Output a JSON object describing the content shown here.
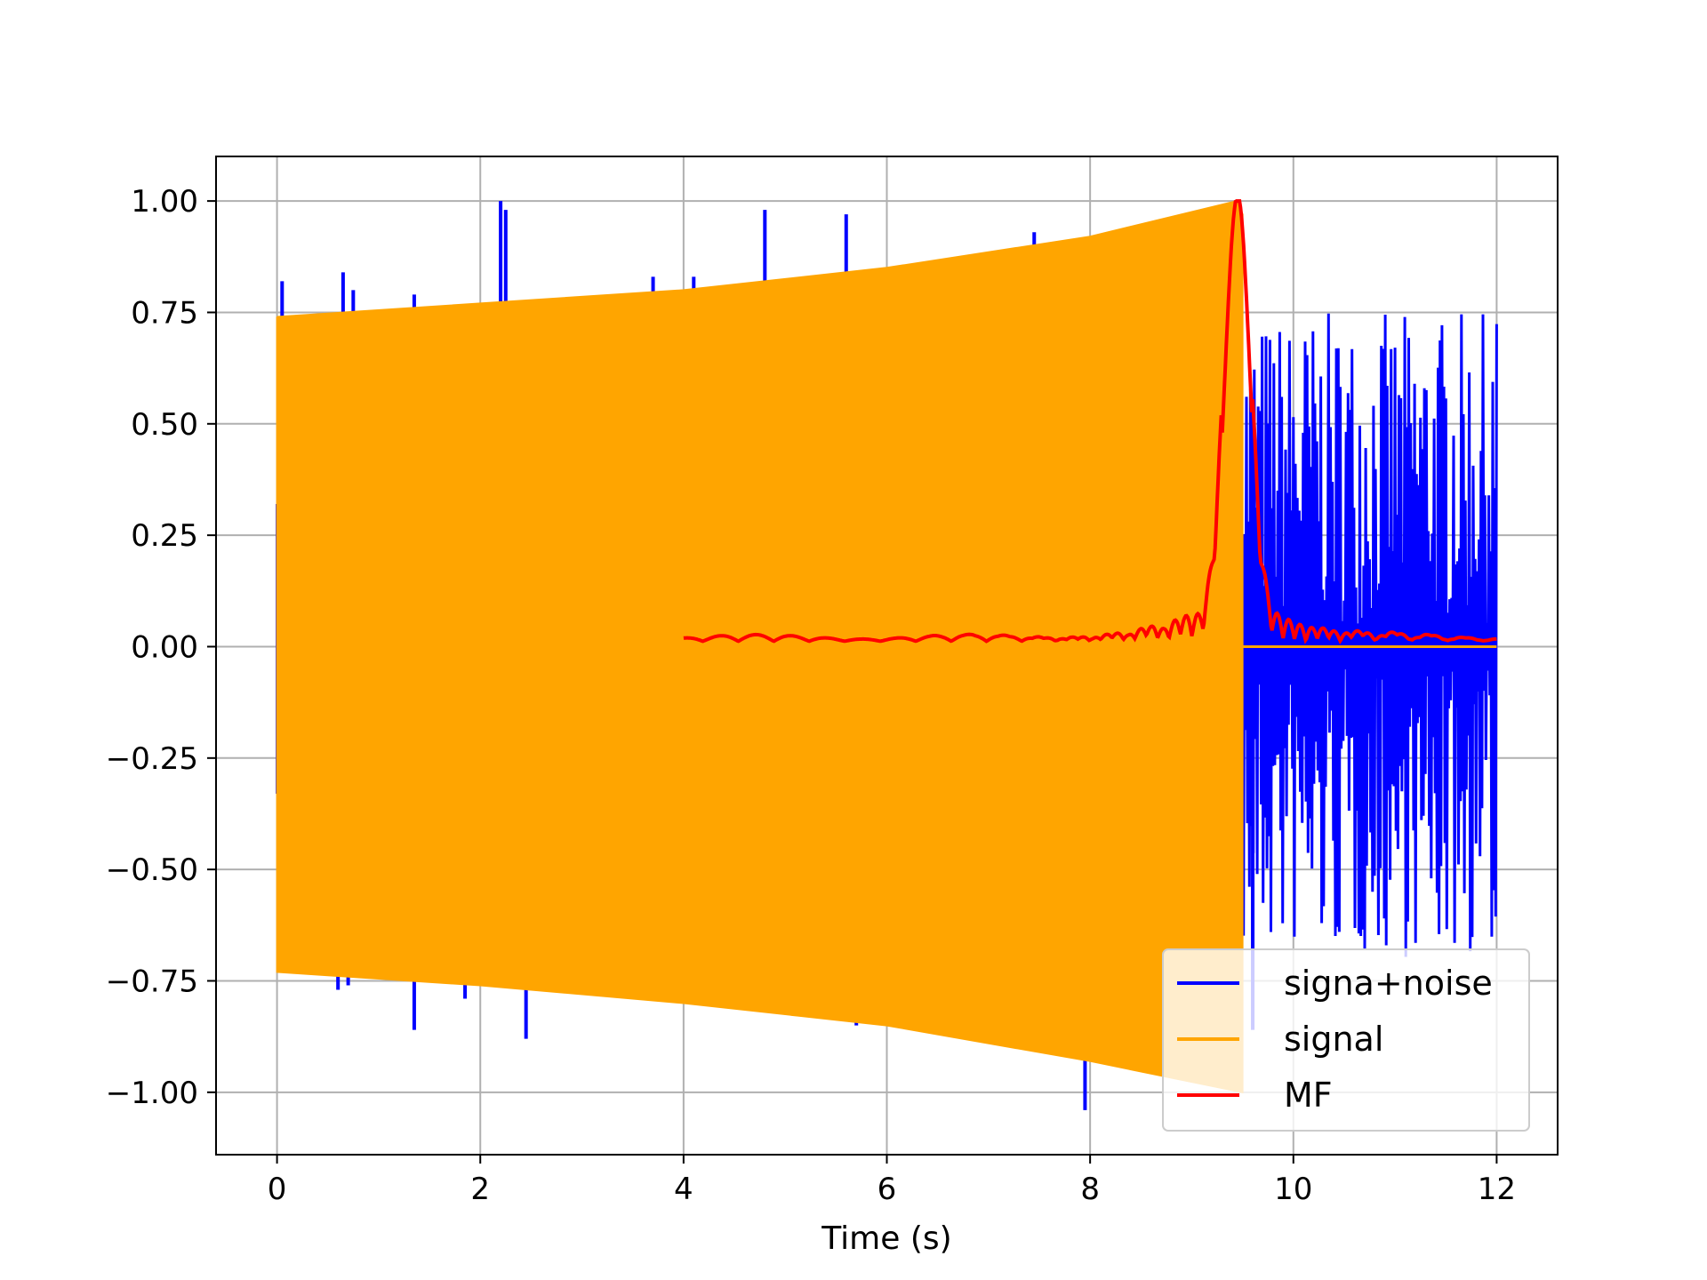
{
  "chart_data": {
    "type": "line",
    "title": "",
    "xlabel": "Time (s)",
    "ylabel": "",
    "xlim": [
      -0.6,
      12.6
    ],
    "ylim": [
      -1.14,
      1.1
    ],
    "xticks": [
      0,
      2,
      4,
      6,
      8,
      10,
      12
    ],
    "xtick_labels": [
      "0",
      "2",
      "4",
      "6",
      "8",
      "10",
      "12"
    ],
    "yticks": [
      1.0,
      0.75,
      0.5,
      0.25,
      0.0,
      -0.25,
      -0.5,
      -0.75,
      -1.0
    ],
    "ytick_labels": [
      "1.00",
      "0.75",
      "0.50",
      "0.25",
      "0.00",
      "−0.25",
      "−0.50",
      "−0.75",
      "−1.00"
    ],
    "grid": true,
    "legend_position": "lower-right",
    "series": [
      {
        "name": "signa+noise",
        "color": "#0000ff",
        "description_range": [
          0,
          12
        ],
        "noise_only_range": [
          9.5,
          12
        ],
        "noise_envelope": {
          "max": 0.75,
          "min": -0.7
        },
        "spikes": [
          {
            "x": 0.05,
            "y": 0.82
          },
          {
            "x": 0.65,
            "y": 0.84
          },
          {
            "x": 0.75,
            "y": 0.8
          },
          {
            "x": 1.35,
            "y": 0.79
          },
          {
            "x": 2.2,
            "y": 1.0
          },
          {
            "x": 2.25,
            "y": 0.98
          },
          {
            "x": 3.7,
            "y": 0.83
          },
          {
            "x": 4.1,
            "y": 0.83
          },
          {
            "x": 4.8,
            "y": 0.98
          },
          {
            "x": 5.6,
            "y": 0.97
          },
          {
            "x": 7.45,
            "y": 0.93
          },
          {
            "x": 0.6,
            "y": -0.77
          },
          {
            "x": 0.7,
            "y": -0.76
          },
          {
            "x": 1.35,
            "y": -0.86
          },
          {
            "x": 1.85,
            "y": -0.79
          },
          {
            "x": 2.45,
            "y": -0.88
          },
          {
            "x": 5.7,
            "y": -0.85
          },
          {
            "x": 7.95,
            "y": -1.04
          },
          {
            "x": 9.6,
            "y": -0.86
          }
        ]
      },
      {
        "name": "signal",
        "color": "#ffa500",
        "range": [
          0,
          9.5
        ],
        "envelope_upper": [
          [
            0,
            0.74
          ],
          [
            2,
            0.77
          ],
          [
            4,
            0.8
          ],
          [
            6,
            0.85
          ],
          [
            8,
            0.92
          ],
          [
            9.45,
            1.0
          ]
        ],
        "envelope_lower": [
          [
            0,
            -0.73
          ],
          [
            2,
            -0.76
          ],
          [
            4,
            -0.8
          ],
          [
            6,
            -0.85
          ],
          [
            8,
            -0.93
          ],
          [
            9.5,
            -1.0
          ]
        ],
        "after": 0.0
      },
      {
        "name": "MF",
        "color": "#ff0000",
        "x_start": 4.0,
        "x_end": 12.0,
        "peak": {
          "x": 9.45,
          "y": 1.0
        }
      }
    ]
  }
}
